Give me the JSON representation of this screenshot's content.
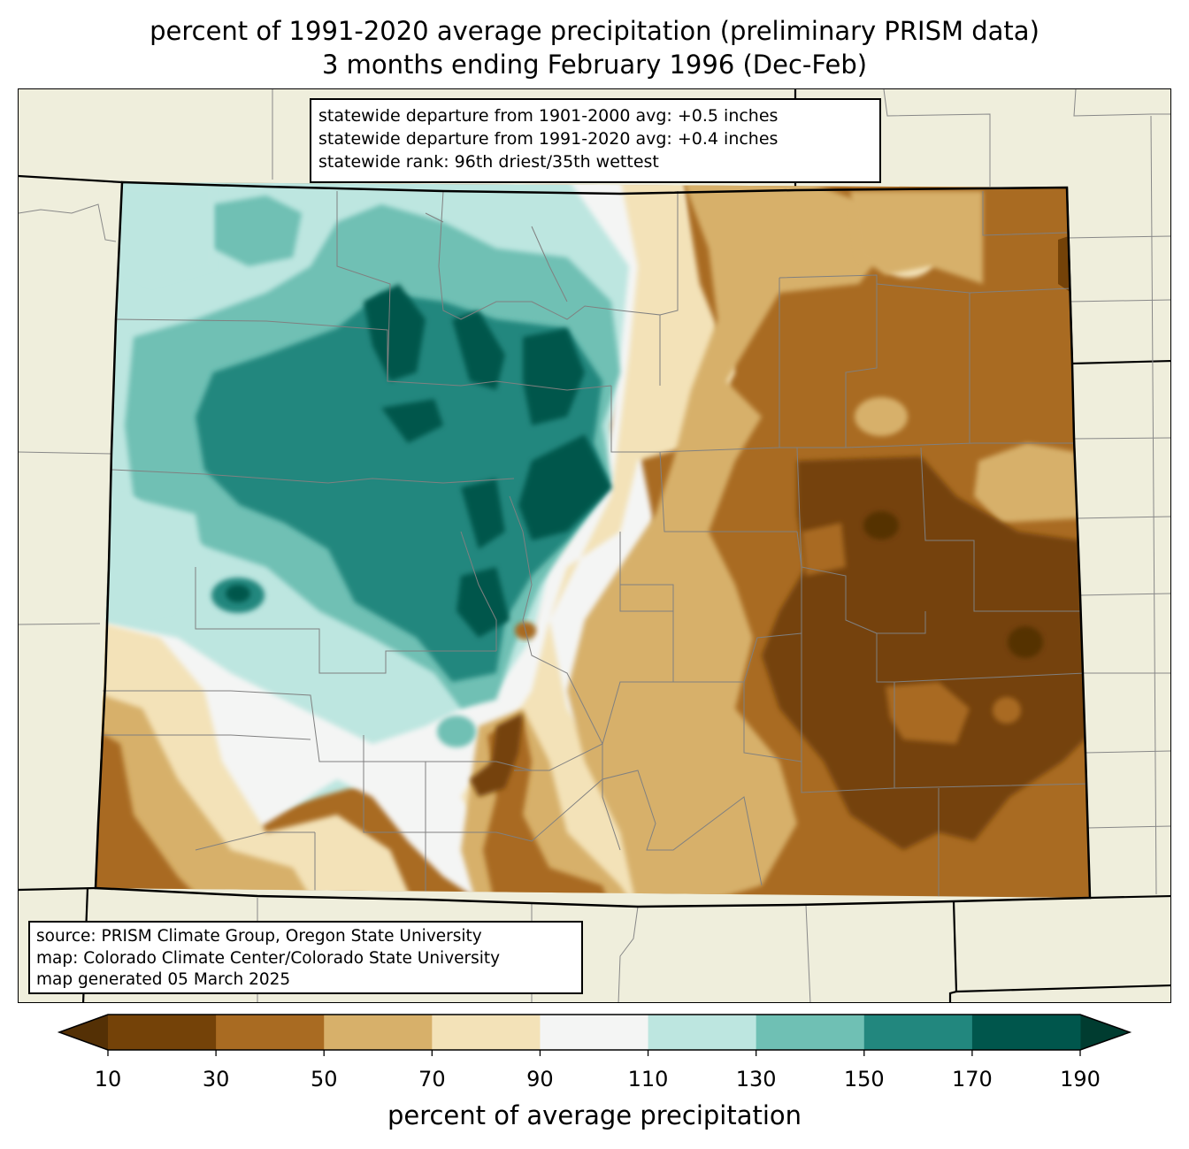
{
  "title": {
    "line1": "percent of 1991-2020 average precipitation (preliminary PRISM data)",
    "line2": "3 months ending February 1996 (Dec-Feb)"
  },
  "stats": {
    "line1": "statewide departure from 1901-2000 avg: +0.5 inches",
    "line2": "statewide departure from 1991-2020 avg: +0.4 inches",
    "line3": "statewide rank: 96th driest/35th wettest"
  },
  "source": {
    "line1": "source: PRISM Climate Group, Oregon State University",
    "line2": "map: Colorado Climate Center/Colorado State University",
    "line3": "map generated 05 March 2025"
  },
  "colorbar": {
    "label": "percent of average precipitation",
    "ticks": [
      "10",
      "30",
      "50",
      "70",
      "90",
      "110",
      "130",
      "150",
      "170",
      "190"
    ],
    "under_color": "#543005",
    "over_color": "#003c30",
    "bins": [
      {
        "range": "10-30",
        "color": "#744208"
      },
      {
        "range": "30-50",
        "color": "#a96b22"
      },
      {
        "range": "50-70",
        "color": "#d7b06a"
      },
      {
        "range": "70-90",
        "color": "#f3e2b8"
      },
      {
        "range": "90-110",
        "color": "#f4f5f4"
      },
      {
        "range": "110-130",
        "color": "#bde6e0"
      },
      {
        "range": "130-150",
        "color": "#6fc0b4"
      },
      {
        "range": "150-170",
        "color": "#22877e"
      },
      {
        "range": "170-190",
        "color": "#00564c"
      }
    ]
  }
}
